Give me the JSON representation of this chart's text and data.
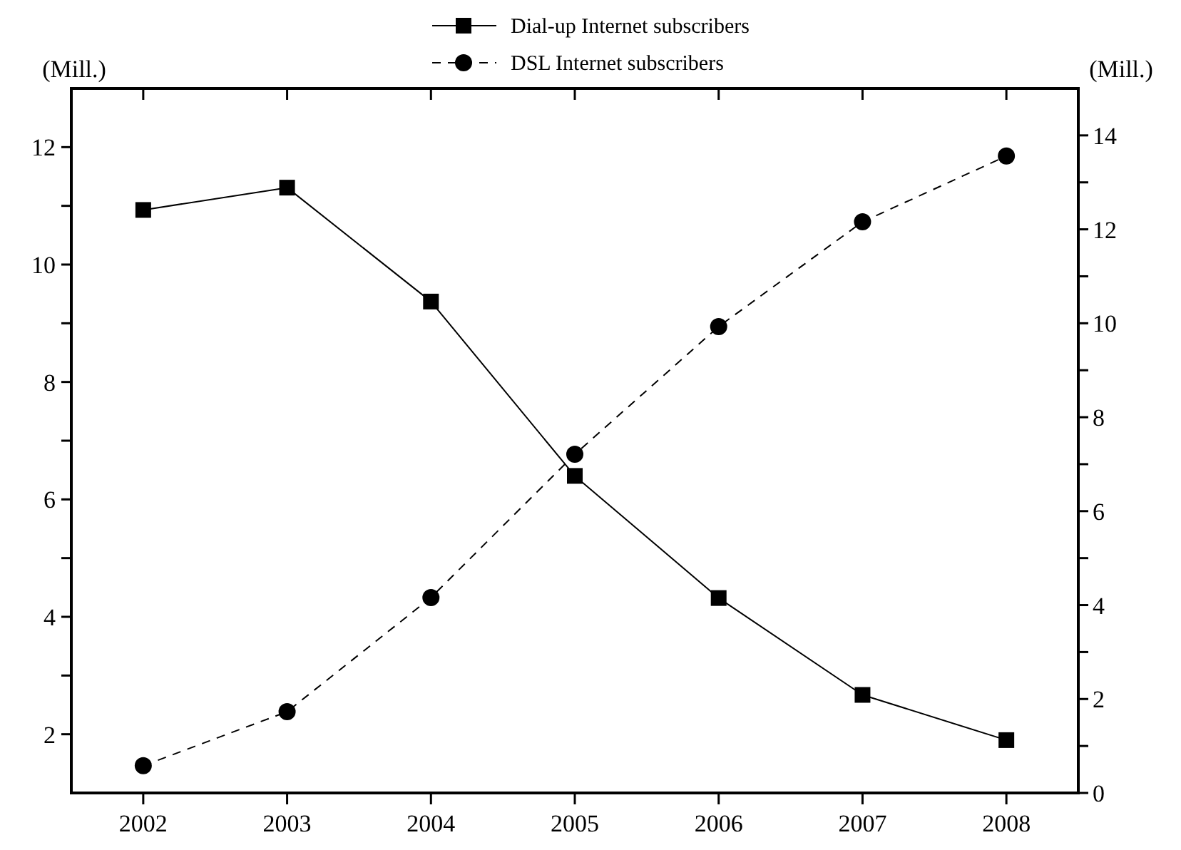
{
  "chart_data": {
    "type": "line",
    "ylabel": "(Mill.)",
    "y2label": "(Mill.)",
    "x": [
      2002,
      2003,
      2004,
      2005,
      2006,
      2007,
      2008
    ],
    "xlim": [
      2001.5,
      2008.5
    ],
    "xticks": [
      2002,
      2003,
      2004,
      2005,
      2006,
      2007,
      2008
    ],
    "ylim": [
      1,
      13
    ],
    "yticks": [
      2,
      {
        "value": 3,
        "label": null
      },
      4,
      {
        "value": 5,
        "label": null
      },
      6,
      {
        "value": 7,
        "label": null
      },
      8,
      {
        "value": 9,
        "label": null
      },
      10,
      {
        "value": 11,
        "label": null
      },
      12
    ],
    "y2lim": [
      0,
      15
    ],
    "y2ticks": [
      0,
      {
        "value": 1,
        "label": null
      },
      2,
      {
        "value": 3,
        "label": null
      },
      4,
      {
        "value": 5,
        "label": null
      },
      6,
      {
        "value": 7,
        "label": null
      },
      8,
      {
        "value": 9,
        "label": null
      },
      10,
      {
        "value": 11,
        "label": null
      },
      12,
      {
        "value": 13,
        "label": null
      },
      14
    ],
    "legend": "top",
    "grid": false,
    "series": [
      {
        "name": "Dial-up Internet subscribers",
        "color": "#000000",
        "marker": "square",
        "line_style": "solid",
        "values": [
          10.93,
          11.31,
          9.37,
          6.4,
          4.32,
          2.67,
          1.9
        ]
      },
      {
        "name": "DSL Internet subscribers",
        "color": "#000000",
        "marker": "circle",
        "line_style": "dashed",
        "axis": "y2",
        "values": [
          0.58,
          1.73,
          4.16,
          7.21,
          9.93,
          12.16,
          13.56
        ]
      }
    ]
  }
}
